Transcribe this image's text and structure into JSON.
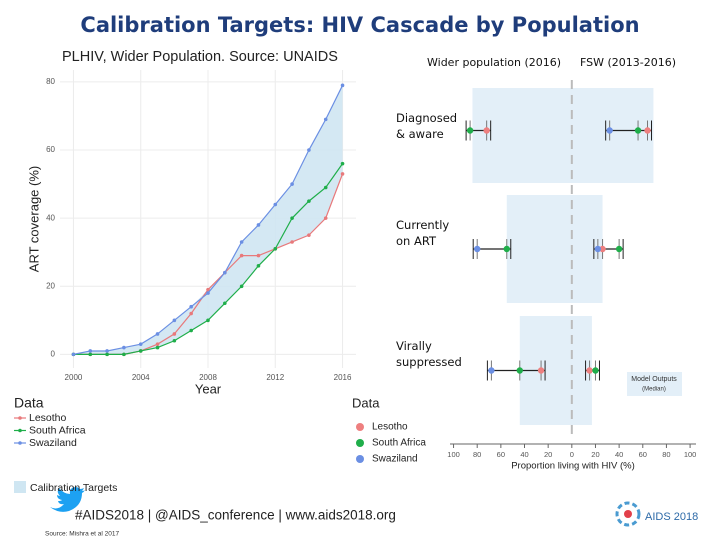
{
  "slide": {
    "title": "Calibration Targets: HIV Cascade by Population",
    "footer": "#AIDS2018 | @AIDS_conference | www.aids2018.org",
    "source": "Source: Mishra et al 2017",
    "logo": "AIDS 2018"
  },
  "chart_data": [
    {
      "type": "line",
      "title": "PLHIV, Wider Population. Source: UNAIDS",
      "xlabel": "Year",
      "ylabel": "ART coverage (%)",
      "x": [
        2000,
        2001,
        2002,
        2003,
        2004,
        2005,
        2006,
        2007,
        2008,
        2009,
        2010,
        2011,
        2012,
        2013,
        2014,
        2015,
        2016
      ],
      "series": [
        {
          "name": "Lesotho",
          "color": "#e8797b",
          "values": [
            0,
            0,
            0,
            0,
            1,
            3,
            6,
            12,
            19,
            24,
            29,
            29,
            31,
            33,
            35,
            40,
            53
          ]
        },
        {
          "name": "South Africa",
          "color": "#1fae4a",
          "values": [
            0,
            0,
            0,
            0,
            1,
            2,
            4,
            7,
            10,
            15,
            20,
            26,
            31,
            40,
            45,
            49,
            56
          ]
        },
        {
          "name": "Swaziland",
          "color": "#6b8fe3",
          "values": [
            0,
            1,
            1,
            2,
            3,
            6,
            10,
            14,
            18,
            24,
            33,
            38,
            44,
            50,
            60,
            69,
            79
          ]
        }
      ],
      "xlim": [
        1999.2,
        2016.8
      ],
      "xticks": [
        2000,
        2004,
        2008,
        2012,
        2016
      ],
      "ylim": [
        -4,
        83.5
      ],
      "yticks": [
        0,
        20,
        40,
        60,
        80
      ],
      "grid": true,
      "legend_title": "Data",
      "band_label": "Calibration Targets",
      "band_color": "#cfe6f2"
    },
    {
      "type": "dot",
      "header_left": "Wider population (2016)",
      "header_right": "FSW (2013-2016)",
      "categories": [
        "Diagnosed & aware",
        "Currently on ART",
        "Virally suppressed"
      ],
      "series": [
        {
          "name": "Lesotho",
          "color": "#ee7f7f",
          "values": [
            72,
            null,
            26
          ],
          "fsw_values": [
            64,
            26,
            15
          ]
        },
        {
          "name": "South Africa",
          "color": "#1fae4a",
          "values": [
            86,
            55,
            44
          ],
          "fsw_values": [
            56,
            40,
            20
          ]
        },
        {
          "name": "Swaziland",
          "color": "#6b8fe3",
          "values": [
            null,
            80,
            68
          ],
          "fsw_values": [
            32,
            22,
            null
          ]
        }
      ],
      "model_output": {
        "title": "Model Outputs",
        "subtitle": "(Median)",
        "color": "#e3eff8",
        "wider": [
          84,
          55,
          44
        ],
        "fsw": [
          69,
          26,
          17
        ]
      },
      "xlabel": "Proportion living with HIV (%)",
      "xlim": [
        -103,
        105
      ],
      "xticks": [
        {
          "value": -100,
          "label": "100"
        },
        {
          "value": -80,
          "label": "80"
        },
        {
          "value": -60,
          "label": "60"
        },
        {
          "value": -40,
          "label": "40"
        },
        {
          "value": -20,
          "label": "20"
        },
        0,
        20,
        40,
        60,
        80,
        100
      ],
      "legend_title": "Data"
    }
  ]
}
